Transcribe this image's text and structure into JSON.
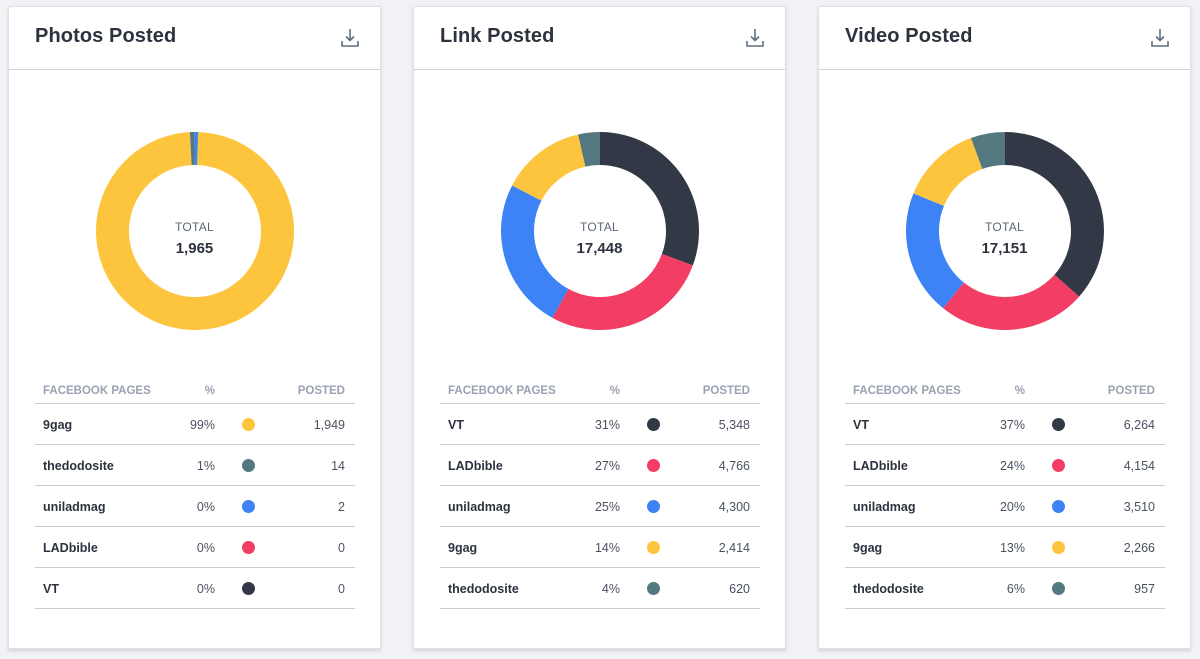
{
  "colors": {
    "VT": "#323846",
    "LADbible": "#f23d64",
    "uniladmag": "#3d83f5",
    "9gag": "#fdc53d",
    "thedodosite": "#537880"
  },
  "table_headers": {
    "page": "FACEBOOK PAGES",
    "pct": "%",
    "posted": "POSTED"
  },
  "center_label": "TOTAL",
  "cards": [
    {
      "title": "Photos Posted",
      "download_icon": "download-icon",
      "total": "1,965",
      "rows": [
        {
          "name": "9gag",
          "pct": "99%",
          "color": "#fdc53d",
          "posted": "1,949"
        },
        {
          "name": "thedodosite",
          "pct": "1%",
          "color": "#537880",
          "posted": "14"
        },
        {
          "name": "uniladmag",
          "pct": "0%",
          "color": "#3d83f5",
          "posted": "2"
        },
        {
          "name": "LADbible",
          "pct": "0%",
          "color": "#f23d64",
          "posted": "0"
        },
        {
          "name": "VT",
          "pct": "0%",
          "color": "#323846",
          "posted": "0"
        }
      ]
    },
    {
      "title": "Link Posted",
      "download_icon": "download-icon",
      "total": "17,448",
      "rows": [
        {
          "name": "VT",
          "pct": "31%",
          "color": "#323846",
          "posted": "5,348"
        },
        {
          "name": "LADbible",
          "pct": "27%",
          "color": "#f23d64",
          "posted": "4,766"
        },
        {
          "name": "uniladmag",
          "pct": "25%",
          "color": "#3d83f5",
          "posted": "4,300"
        },
        {
          "name": "9gag",
          "pct": "14%",
          "color": "#fdc53d",
          "posted": "2,414"
        },
        {
          "name": "thedodosite",
          "pct": "4%",
          "color": "#537880",
          "posted": "620"
        }
      ]
    },
    {
      "title": "Video Posted",
      "download_icon": "download-icon",
      "total": "17,151",
      "rows": [
        {
          "name": "VT",
          "pct": "37%",
          "color": "#323846",
          "posted": "6,264"
        },
        {
          "name": "LADbible",
          "pct": "24%",
          "color": "#f23d64",
          "posted": "4,154"
        },
        {
          "name": "uniladmag",
          "pct": "20%",
          "color": "#3d83f5",
          "posted": "3,510"
        },
        {
          "name": "9gag",
          "pct": "13%",
          "color": "#fdc53d",
          "posted": "2,266"
        },
        {
          "name": "thedodosite",
          "pct": "6%",
          "color": "#537880",
          "posted": "957"
        }
      ]
    }
  ],
  "chart_data": [
    {
      "type": "pie",
      "title": "Photos Posted",
      "center_text": "TOTAL 1,965",
      "categories": [
        "9gag",
        "thedodosite",
        "uniladmag",
        "LADbible",
        "VT"
      ],
      "values": [
        1949,
        14,
        2,
        0,
        0
      ],
      "percent": [
        99,
        1,
        0,
        0,
        0
      ],
      "colors": [
        "#fdc53d",
        "#537880",
        "#3d83f5",
        "#f23d64",
        "#323846"
      ],
      "donut": true
    },
    {
      "type": "pie",
      "title": "Link Posted",
      "center_text": "TOTAL 17,448",
      "categories": [
        "VT",
        "LADbible",
        "uniladmag",
        "9gag",
        "thedodosite"
      ],
      "values": [
        5348,
        4766,
        4300,
        2414,
        620
      ],
      "percent": [
        31,
        27,
        25,
        14,
        4
      ],
      "colors": [
        "#323846",
        "#f23d64",
        "#3d83f5",
        "#fdc53d",
        "#537880"
      ],
      "donut": true
    },
    {
      "type": "pie",
      "title": "Video Posted",
      "center_text": "TOTAL 17,151",
      "categories": [
        "VT",
        "LADbible",
        "uniladmag",
        "9gag",
        "thedodosite"
      ],
      "values": [
        6264,
        4154,
        3510,
        2266,
        957
      ],
      "percent": [
        37,
        24,
        20,
        13,
        6
      ],
      "colors": [
        "#323846",
        "#f23d64",
        "#3d83f5",
        "#fdc53d",
        "#537880"
      ],
      "donut": true
    }
  ]
}
